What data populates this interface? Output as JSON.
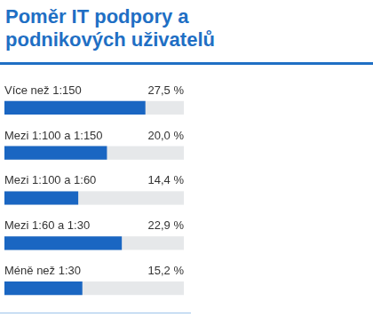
{
  "chart_data": {
    "type": "bar",
    "title": "Poměr IT podpory a podnikových uživatelů",
    "orientation": "horizontal",
    "categories": [
      "Více než 1:150",
      "Mezi 1:100 a 1:150",
      "Mezi 1:100 a 1:60",
      "Mezi 1:60 a 1:30",
      "Méně než 1:30"
    ],
    "values": [
      27.5,
      20.0,
      14.4,
      22.9,
      15.2
    ],
    "value_labels": [
      "27,5 %",
      "20,0 %",
      "14,4 %",
      "22,9 %",
      "15,2 %"
    ],
    "color": "#1a66c2",
    "xlim": [
      0,
      35
    ],
    "grid": false,
    "data_labels": true,
    "tick_labels": false
  }
}
